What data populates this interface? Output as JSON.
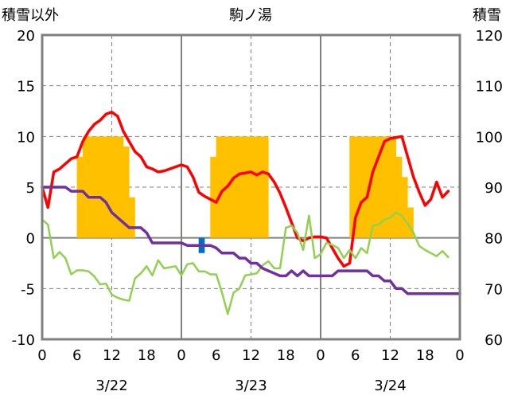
{
  "chart_data": {
    "type": "line",
    "title": "駒ノ湯",
    "left_axis_label": "積雪以外",
    "right_axis_label": "積雪",
    "y_left": {
      "min": -10,
      "max": 20,
      "ticks": [
        -10,
        -5,
        0,
        5,
        10,
        15,
        20
      ]
    },
    "y_right": {
      "min": 60,
      "max": 120,
      "ticks": [
        60,
        70,
        80,
        90,
        100,
        110,
        120
      ]
    },
    "x": {
      "min": 0,
      "max": 72,
      "tick_hours": [
        0,
        6,
        12,
        18,
        24,
        30,
        36,
        42,
        48,
        54,
        60,
        66,
        72
      ],
      "tick_labels": [
        "0",
        "6",
        "12",
        "18",
        "0",
        "6",
        "12",
        "18",
        "0",
        "6",
        "12",
        "18",
        "0"
      ],
      "day_lines": [
        24,
        48
      ],
      "dashed_hours": [
        12,
        36,
        60
      ]
    },
    "dates": [
      {
        "label": "3/22",
        "hour": 12
      },
      {
        "label": "3/23",
        "hour": 36
      },
      {
        "label": "3/24",
        "hour": 60
      }
    ],
    "colors": {
      "temperature": "#ff0000",
      "humidity": "#92d050",
      "snow_depth": "#7030a0",
      "precip_positive": "#ffc000",
      "precip_negative": "#0070c0"
    },
    "precipitation_bars": {
      "axis": "left",
      "values": [
        [
          6.5,
          8
        ],
        [
          7.5,
          10
        ],
        [
          8.5,
          10
        ],
        [
          9.5,
          10
        ],
        [
          10.5,
          10
        ],
        [
          11.5,
          10
        ],
        [
          12.5,
          10
        ],
        [
          13.5,
          10
        ],
        [
          14.5,
          9
        ],
        [
          15.5,
          4
        ],
        [
          27.5,
          -1.5
        ],
        [
          29.5,
          8
        ],
        [
          30.5,
          10
        ],
        [
          31.5,
          10
        ],
        [
          32.5,
          10
        ],
        [
          33.5,
          10
        ],
        [
          34.5,
          10
        ],
        [
          35.5,
          10
        ],
        [
          36.5,
          10
        ],
        [
          37.5,
          10
        ],
        [
          38.5,
          10
        ],
        [
          53.5,
          10
        ],
        [
          54.5,
          10
        ],
        [
          55.5,
          10
        ],
        [
          56.5,
          10
        ],
        [
          57.5,
          10
        ],
        [
          58.5,
          10
        ],
        [
          59.5,
          10
        ],
        [
          60.5,
          10
        ],
        [
          61.5,
          8
        ],
        [
          62.5,
          6
        ],
        [
          63.5,
          3
        ]
      ]
    },
    "series": [
      {
        "key": "temperature",
        "axis": "left",
        "stroke_width": 3.5,
        "points": [
          [
            0,
            5
          ],
          [
            1,
            3
          ],
          [
            2,
            6.5
          ],
          [
            3,
            6.8
          ],
          [
            4,
            7.3
          ],
          [
            5,
            7.8
          ],
          [
            6,
            8
          ],
          [
            7,
            9.5
          ],
          [
            8,
            10.5
          ],
          [
            9,
            11.2
          ],
          [
            10,
            11.6
          ],
          [
            11,
            12.2
          ],
          [
            12,
            12.4
          ],
          [
            13,
            12
          ],
          [
            14,
            10.5
          ],
          [
            15,
            9.5
          ],
          [
            16,
            8.5
          ],
          [
            17,
            8
          ],
          [
            18,
            7
          ],
          [
            19,
            6.8
          ],
          [
            20,
            6.5
          ],
          [
            21,
            6.6
          ],
          [
            22,
            6.8
          ],
          [
            23,
            7
          ],
          [
            24,
            7.2
          ],
          [
            25,
            7
          ],
          [
            26,
            6
          ],
          [
            27,
            4.5
          ],
          [
            28,
            4.1
          ],
          [
            29,
            3.8
          ],
          [
            30,
            3.5
          ],
          [
            31,
            4.6
          ],
          [
            32,
            5.1
          ],
          [
            33,
            5.9
          ],
          [
            34,
            6.3
          ],
          [
            35,
            6.4
          ],
          [
            36,
            6.5
          ],
          [
            37,
            6.2
          ],
          [
            38,
            6.5
          ],
          [
            39,
            6.3
          ],
          [
            40,
            5.5
          ],
          [
            41,
            4.4
          ],
          [
            42,
            3
          ],
          [
            43,
            1.5
          ],
          [
            44,
            0
          ],
          [
            45,
            -0.3
          ],
          [
            46,
            0
          ],
          [
            47,
            0.1
          ],
          [
            48,
            0.1
          ],
          [
            49,
            0
          ],
          [
            50,
            -1
          ],
          [
            51,
            -2
          ],
          [
            52,
            -2.8
          ],
          [
            53,
            -2.5
          ],
          [
            54,
            2
          ],
          [
            55,
            3.5
          ],
          [
            56,
            4
          ],
          [
            57,
            6.5
          ],
          [
            58,
            8
          ],
          [
            59,
            9.5
          ],
          [
            60,
            9.8
          ],
          [
            61,
            9.9
          ],
          [
            62,
            10
          ],
          [
            63,
            8
          ],
          [
            64,
            6
          ],
          [
            65,
            4.5
          ],
          [
            66,
            3.2
          ],
          [
            67,
            3.8
          ],
          [
            68,
            5.5
          ],
          [
            69,
            4
          ],
          [
            70,
            4.6
          ]
        ]
      },
      {
        "key": "humidity",
        "axis": "left",
        "stroke_width": 2.5,
        "points": [
          [
            0,
            1.8
          ],
          [
            1,
            1.3
          ],
          [
            2,
            -2
          ],
          [
            3,
            -1.4
          ],
          [
            4,
            -2
          ],
          [
            5,
            -3.6
          ],
          [
            6,
            -3.2
          ],
          [
            7,
            -3.2
          ],
          [
            8,
            -3.3
          ],
          [
            9,
            -3.8
          ],
          [
            10,
            -4.6
          ],
          [
            11,
            -4.5
          ],
          [
            12,
            -5.6
          ],
          [
            13,
            -5.9
          ],
          [
            14,
            -6.1
          ],
          [
            15,
            -6.2
          ],
          [
            16,
            -4
          ],
          [
            17,
            -3.5
          ],
          [
            18,
            -2.8
          ],
          [
            19,
            -3.7
          ],
          [
            20,
            -2.2
          ],
          [
            21,
            -3
          ],
          [
            22,
            -2.9
          ],
          [
            23,
            -2.8
          ],
          [
            24,
            -3.7
          ],
          [
            25,
            -2.6
          ],
          [
            26,
            -2.5
          ],
          [
            27,
            -3.3
          ],
          [
            28,
            -3.3
          ],
          [
            29,
            -3.6
          ],
          [
            30,
            -3.6
          ],
          [
            31,
            -5.4
          ],
          [
            32,
            -7.5
          ],
          [
            33,
            -5.4
          ],
          [
            34,
            -5
          ],
          [
            35,
            -3.7
          ],
          [
            36,
            -3.6
          ],
          [
            37,
            -3.5
          ],
          [
            38,
            -2.7
          ],
          [
            39,
            -2.3
          ],
          [
            40,
            -3
          ],
          [
            41,
            -3
          ],
          [
            42,
            1
          ],
          [
            43,
            1.2
          ],
          [
            44,
            0.5
          ],
          [
            45,
            -1.2
          ],
          [
            46,
            2.2
          ],
          [
            47,
            -2
          ],
          [
            48,
            -1.6
          ],
          [
            49,
            -0.5
          ],
          [
            50,
            -0.7
          ],
          [
            51,
            -1
          ],
          [
            52,
            -2
          ],
          [
            53,
            -1.2
          ],
          [
            54,
            -2
          ],
          [
            55,
            -1
          ],
          [
            56,
            -1.5
          ],
          [
            57,
            1.2
          ],
          [
            58,
            1.3
          ],
          [
            59,
            1.8
          ],
          [
            60,
            2
          ],
          [
            61,
            2.5
          ],
          [
            62,
            2.2
          ],
          [
            63,
            1.4
          ],
          [
            64,
            0.5
          ],
          [
            65,
            -0.8
          ],
          [
            66,
            -1.2
          ],
          [
            67,
            -1.5
          ],
          [
            68,
            -1.8
          ],
          [
            69,
            -1.3
          ],
          [
            70,
            -1.9
          ]
        ]
      },
      {
        "key": "snow_depth",
        "axis": "right",
        "stroke_width": 3.5,
        "points": [
          [
            0,
            90
          ],
          [
            3,
            90
          ],
          [
            4,
            90
          ],
          [
            5,
            89.2
          ],
          [
            7,
            89.2
          ],
          [
            8,
            88
          ],
          [
            10,
            88
          ],
          [
            11,
            87
          ],
          [
            12,
            85
          ],
          [
            14,
            83
          ],
          [
            15,
            82
          ],
          [
            17,
            82
          ],
          [
            18,
            81
          ],
          [
            19,
            79
          ],
          [
            24,
            79
          ],
          [
            25,
            78.5
          ],
          [
            29,
            78.5
          ],
          [
            30,
            78
          ],
          [
            31,
            77
          ],
          [
            33,
            77
          ],
          [
            34,
            76
          ],
          [
            35,
            76
          ],
          [
            36,
            75
          ],
          [
            37,
            75
          ],
          [
            38,
            74
          ],
          [
            39,
            73.5
          ],
          [
            40,
            73
          ],
          [
            41,
            72.5
          ],
          [
            42,
            72.5
          ],
          [
            43,
            73.5
          ],
          [
            44,
            72.5
          ],
          [
            45,
            73.5
          ],
          [
            46,
            72.5
          ],
          [
            47,
            72.5
          ],
          [
            48,
            72.5
          ],
          [
            49,
            72.5
          ],
          [
            50,
            72.5
          ],
          [
            51,
            73.5
          ],
          [
            52,
            73.5
          ],
          [
            56,
            73.5
          ],
          [
            57,
            72.5
          ],
          [
            58,
            72.5
          ],
          [
            59,
            71.5
          ],
          [
            60,
            71.5
          ],
          [
            61,
            70
          ],
          [
            62,
            70
          ],
          [
            63,
            69
          ],
          [
            64,
            69
          ],
          [
            72,
            69
          ]
        ]
      }
    ]
  }
}
